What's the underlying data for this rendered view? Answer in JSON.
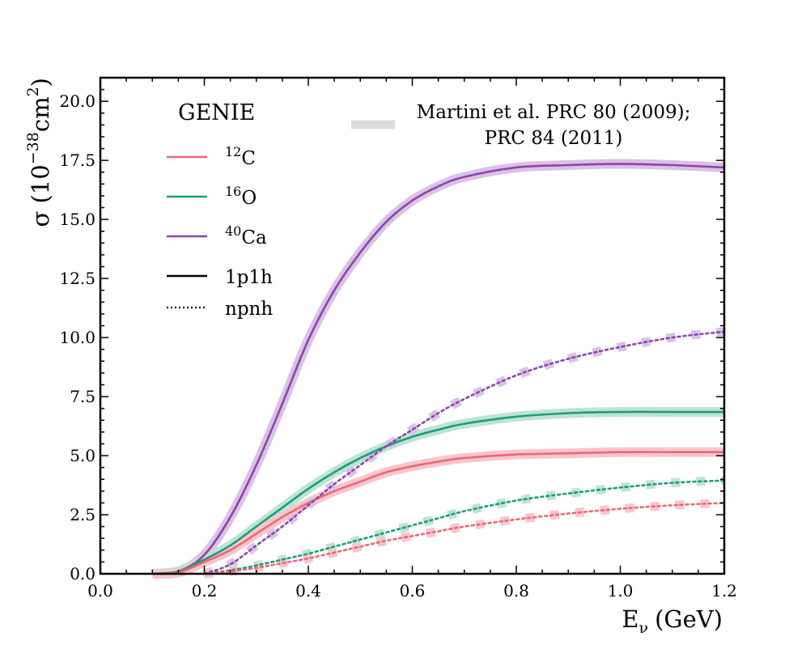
{
  "chart_data": {
    "type": "line",
    "xlabel": "E",
    "xlabel_sub": "ν",
    "xlabel_unit": "(GeV)",
    "ylabel": "σ (10",
    "ylabel_exp": "−38",
    "ylabel_unit_a": "cm",
    "ylabel_unit_exp": "2",
    "ylabel_close": ")",
    "xlim": [
      0.0,
      1.2
    ],
    "ylim": [
      0.0,
      21.0
    ],
    "xticks": [
      0.0,
      0.2,
      0.4,
      0.6,
      0.8,
      1.0,
      1.2
    ],
    "xtick_labels": [
      "0.0",
      "0.2",
      "0.4",
      "0.6",
      "0.8",
      "1.0",
      "1.2"
    ],
    "yticks": [
      0.0,
      2.5,
      5.0,
      7.5,
      10.0,
      12.5,
      15.0,
      17.5,
      20.0
    ],
    "ytick_labels": [
      "0.0",
      "2.5",
      "5.0",
      "7.5",
      "10.0",
      "12.5",
      "15.0",
      "17.5",
      "20.0"
    ],
    "legend_left": {
      "title": "GENIE",
      "entries": [
        {
          "label_sup": "12",
          "label": "C",
          "color": "#ee6677",
          "style": "solid"
        },
        {
          "label_sup": "16",
          "label": "O",
          "color": "#1b9e77",
          "style": "solid"
        },
        {
          "label_sup": "40",
          "label": "Ca",
          "color": "#8e44ad",
          "style": "solid"
        },
        {
          "label_sup": "",
          "label": "1p1h",
          "color": "#000000",
          "style": "solid"
        },
        {
          "label_sup": "",
          "label": "npnh",
          "color": "#000000",
          "style": "dotted"
        }
      ]
    },
    "legend_right": {
      "line1": "Martini et al. PRC 80 (2009);",
      "line2": "PRC 84 (2011)",
      "color": "#dddddd"
    },
    "series": [
      {
        "nucleus": "Ca",
        "channel": "1p1h",
        "color": "#8e44ad",
        "band_color": "#d9c2e6",
        "dash": "",
        "x": [
          0.1,
          0.15,
          0.2,
          0.25,
          0.3,
          0.35,
          0.4,
          0.45,
          0.5,
          0.55,
          0.6,
          0.65,
          0.7,
          0.8,
          0.9,
          1.0,
          1.1,
          1.2
        ],
        "y": [
          0.0,
          0.1,
          0.8,
          2.4,
          4.6,
          7.2,
          9.9,
          12.0,
          13.6,
          14.9,
          15.8,
          16.4,
          16.8,
          17.2,
          17.3,
          17.35,
          17.3,
          17.2
        ]
      },
      {
        "nucleus": "O",
        "channel": "1p1h",
        "color": "#1b9e77",
        "band_color": "#bde3d6",
        "dash": "",
        "x": [
          0.1,
          0.15,
          0.2,
          0.25,
          0.3,
          0.35,
          0.4,
          0.45,
          0.5,
          0.55,
          0.6,
          0.65,
          0.7,
          0.8,
          0.9,
          1.0,
          1.1,
          1.2
        ],
        "y": [
          0.0,
          0.1,
          0.6,
          1.2,
          2.0,
          2.8,
          3.6,
          4.3,
          4.9,
          5.4,
          5.8,
          6.1,
          6.35,
          6.65,
          6.8,
          6.85,
          6.85,
          6.85
        ]
      },
      {
        "nucleus": "C",
        "channel": "1p1h",
        "color": "#ee6677",
        "band_color": "#f8c6cc",
        "dash": "",
        "x": [
          0.1,
          0.15,
          0.2,
          0.25,
          0.3,
          0.35,
          0.4,
          0.45,
          0.5,
          0.55,
          0.6,
          0.65,
          0.7,
          0.8,
          0.9,
          1.0,
          1.1,
          1.2
        ],
        "y": [
          0.0,
          0.05,
          0.5,
          1.0,
          1.7,
          2.4,
          3.0,
          3.5,
          3.9,
          4.3,
          4.55,
          4.75,
          4.9,
          5.05,
          5.1,
          5.15,
          5.15,
          5.15
        ]
      },
      {
        "nucleus": "Ca",
        "channel": "npnh",
        "color": "#8e44ad",
        "band_color": "#d9c2e6",
        "dash": "3,4",
        "x": [
          0.2,
          0.25,
          0.3,
          0.35,
          0.4,
          0.45,
          0.5,
          0.55,
          0.6,
          0.65,
          0.7,
          0.8,
          0.9,
          1.0,
          1.1,
          1.2
        ],
        "y": [
          0.0,
          0.4,
          1.2,
          2.0,
          2.9,
          3.8,
          4.6,
          5.4,
          6.1,
          6.8,
          7.4,
          8.4,
          9.1,
          9.6,
          10.0,
          10.25
        ]
      },
      {
        "nucleus": "O",
        "channel": "npnh",
        "color": "#1b9e77",
        "band_color": "#bde3d6",
        "dash": "3,4",
        "x": [
          0.2,
          0.25,
          0.3,
          0.35,
          0.4,
          0.45,
          0.5,
          0.55,
          0.6,
          0.65,
          0.7,
          0.8,
          0.9,
          1.0,
          1.1,
          1.2
        ],
        "y": [
          0.0,
          0.15,
          0.35,
          0.6,
          0.85,
          1.15,
          1.45,
          1.75,
          2.05,
          2.35,
          2.65,
          3.1,
          3.4,
          3.65,
          3.85,
          3.95
        ]
      },
      {
        "nucleus": "C",
        "channel": "npnh",
        "color": "#ee6677",
        "band_color": "#f8c6cc",
        "dash": "3,4",
        "x": [
          0.2,
          0.25,
          0.3,
          0.35,
          0.4,
          0.45,
          0.5,
          0.55,
          0.6,
          0.65,
          0.7,
          0.8,
          0.9,
          1.0,
          1.1,
          1.2
        ],
        "y": [
          0.0,
          0.1,
          0.25,
          0.45,
          0.65,
          0.9,
          1.15,
          1.4,
          1.6,
          1.8,
          2.0,
          2.3,
          2.55,
          2.75,
          2.9,
          3.0
        ]
      }
    ]
  }
}
